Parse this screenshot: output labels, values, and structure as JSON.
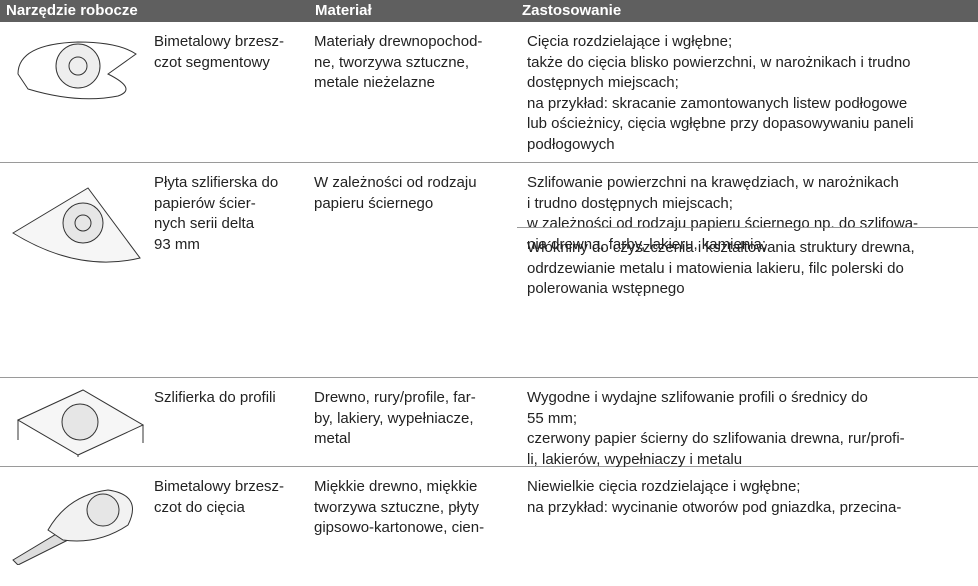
{
  "table": {
    "header": [
      "Narzędzie robocze",
      "Materiał",
      "Zastosowanie"
    ],
    "rows": [
      {
        "tool": [
          "Bimetalowy brzesz-",
          "czot segmentowy"
        ],
        "material": [
          "Materiały drewnopochod-",
          "ne, tworzywa sztuczne,",
          "metale nieżelazne"
        ],
        "application": [
          [
            "Cięcia rozdzielające i wgłębne;",
            "także do cięcia blisko powierzchni, w narożnikach i trudno",
            "dostępnych miejscach;",
            "na przykład: skracanie zamontowanych listew podłogowe",
            "lub ościeżnicy, cięcia wgłębne przy dopasowywaniu paneli",
            "podłogowych"
          ]
        ]
      },
      {
        "tool": [
          "Płyta szlifierska do",
          "papierów ścier-",
          "nych serii delta",
          "93 mm"
        ],
        "material": [
          "W zależności od rodzaju",
          "papieru ściernego"
        ],
        "application": [
          [
            "Szlifowanie powierzchni na krawędziach, w narożnikach",
            "i trudno dostępnych miejscach;",
            "w zależności od rodzaju papieru ściernego np. do szlifowa-",
            "nia drewna, farby, lakieru, kamienia;"
          ],
          [
            "Włókniny do czyszczenia i kształtowania struktury drewna,",
            "odrdzewianie metalu i matowienia lakieru, filc polerski do",
            "polerowania wstępnego"
          ]
        ]
      },
      {
        "tool": [
          "Szlifierka do profili"
        ],
        "material": [
          "Drewno, rury/profile, far-",
          "by, lakiery, wypełniacze,",
          "metal"
        ],
        "application": [
          [
            "Wygodne i wydajne szlifowanie profili o średnicy do",
            "55 mm;",
            "czerwony papier ścierny do szlifowania drewna, rur/profi-",
            "li, lakierów, wypełniaczy i metalu"
          ]
        ]
      },
      {
        "tool": [
          "Bimetalowy brzesz-",
          "czot do cięcia"
        ],
        "material": [
          "Miękkie drewno, miękkie",
          "tworzywa sztuczne, płyty",
          "gipsowo-kartonowe, cien-"
        ],
        "application": [
          [
            "Niewielkie cięcia rozdzielające i wgłębne;",
            "na przykład: wycinanie otworów pod gniazdka, przecina-"
          ]
        ]
      }
    ]
  }
}
